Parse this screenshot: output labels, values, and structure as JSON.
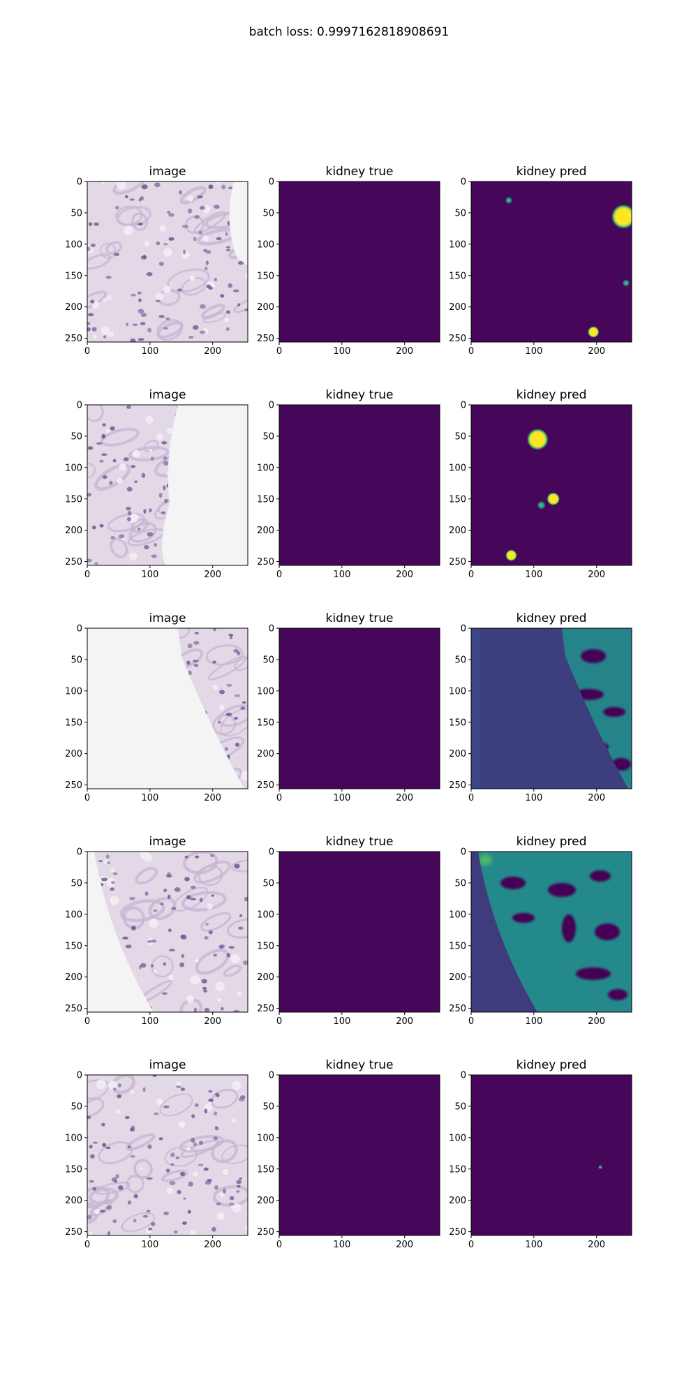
{
  "figure": {
    "suptitle": "batch loss: 0.9997162818908691"
  },
  "chart_data": [
    {
      "type": "heatmap",
      "row": 1,
      "col": 1,
      "title": "image",
      "content": "kidney tissue (H&E) tile, full tissue",
      "xticks": [
        0,
        100,
        200
      ],
      "yticks": [
        0,
        50,
        100,
        150,
        200,
        250
      ],
      "xlim": [
        0,
        256
      ],
      "ylim": [
        256,
        0
      ]
    },
    {
      "type": "heatmap",
      "row": 1,
      "col": 2,
      "title": "kidney true",
      "content": "empty mask",
      "xticks": [
        0,
        100,
        200
      ],
      "yticks": [
        0,
        50,
        100,
        150,
        200,
        250
      ],
      "xlim": [
        0,
        256
      ],
      "ylim": [
        256,
        0
      ]
    },
    {
      "type": "heatmap",
      "row": 1,
      "col": 3,
      "title": "kidney pred",
      "content": "sparse yellow blobs",
      "xticks": [
        0,
        100,
        200
      ],
      "yticks": [
        0,
        50,
        100,
        150,
        200,
        250
      ],
      "xlim": [
        0,
        256
      ],
      "ylim": [
        256,
        0
      ],
      "blobs": [
        {
          "x": 60,
          "y": 30,
          "r": 5,
          "level": 0.5
        },
        {
          "x": 243,
          "y": 56,
          "r": 17,
          "level": 1
        },
        {
          "x": 247,
          "y": 162,
          "r": 5,
          "level": 0.6
        },
        {
          "x": 195,
          "y": 240,
          "r": 8,
          "level": 1
        }
      ]
    },
    {
      "type": "heatmap",
      "row": 2,
      "col": 1,
      "title": "image",
      "content": "tissue on left, blank background right",
      "xticks": [
        0,
        100,
        200
      ],
      "yticks": [
        0,
        50,
        100,
        150,
        200,
        250
      ],
      "xlim": [
        0,
        256
      ],
      "ylim": [
        256,
        0
      ]
    },
    {
      "type": "heatmap",
      "row": 2,
      "col": 2,
      "title": "kidney true",
      "content": "empty mask",
      "xticks": [
        0,
        100,
        200
      ],
      "yticks": [
        0,
        50,
        100,
        150,
        200,
        250
      ],
      "xlim": [
        0,
        256
      ],
      "ylim": [
        256,
        0
      ]
    },
    {
      "type": "heatmap",
      "row": 2,
      "col": 3,
      "title": "kidney pred",
      "content": "sparse yellow blobs",
      "xticks": [
        0,
        100,
        200
      ],
      "yticks": [
        0,
        50,
        100,
        150,
        200,
        250
      ],
      "xlim": [
        0,
        256
      ],
      "ylim": [
        256,
        0
      ],
      "blobs": [
        {
          "x": 106,
          "y": 55,
          "r": 15,
          "level": 1
        },
        {
          "x": 131,
          "y": 150,
          "r": 9,
          "level": 1
        },
        {
          "x": 112,
          "y": 160,
          "r": 6,
          "level": 0.5
        },
        {
          "x": 64,
          "y": 240,
          "r": 8,
          "level": 1
        }
      ]
    },
    {
      "type": "heatmap",
      "row": 3,
      "col": 1,
      "title": "image",
      "content": "blank left, tissue right",
      "xticks": [
        0,
        100,
        200
      ],
      "yticks": [
        0,
        50,
        100,
        150,
        200,
        250
      ],
      "xlim": [
        0,
        256
      ],
      "ylim": [
        256,
        0
      ]
    },
    {
      "type": "heatmap",
      "row": 3,
      "col": 2,
      "title": "kidney true",
      "content": "empty mask",
      "xticks": [
        0,
        100,
        200
      ],
      "yticks": [
        0,
        50,
        100,
        150,
        200,
        250
      ],
      "xlim": [
        0,
        256
      ],
      "ylim": [
        256,
        0
      ]
    },
    {
      "type": "heatmap",
      "row": 3,
      "col": 3,
      "title": "kidney pred",
      "content": "low-level diffuse prediction over tissue",
      "xticks": [
        0,
        100,
        200
      ],
      "yticks": [
        0,
        50,
        100,
        150,
        200,
        250
      ],
      "xlim": [
        0,
        256
      ],
      "ylim": [
        256,
        0
      ]
    },
    {
      "type": "heatmap",
      "row": 4,
      "col": 1,
      "title": "image",
      "content": "blank left edge, tissue right",
      "xticks": [
        0,
        100,
        200
      ],
      "yticks": [
        0,
        50,
        100,
        150,
        200,
        250
      ],
      "xlim": [
        0,
        256
      ],
      "ylim": [
        256,
        0
      ]
    },
    {
      "type": "heatmap",
      "row": 4,
      "col": 2,
      "title": "kidney true",
      "content": "empty mask",
      "xticks": [
        0,
        100,
        200
      ],
      "yticks": [
        0,
        50,
        100,
        150,
        200,
        250
      ],
      "xlim": [
        0,
        256
      ],
      "ylim": [
        256,
        0
      ]
    },
    {
      "type": "heatmap",
      "row": 4,
      "col": 3,
      "title": "kidney pred",
      "content": "low-level diffuse prediction over tissue",
      "xticks": [
        0,
        100,
        200
      ],
      "yticks": [
        0,
        50,
        100,
        150,
        200,
        250
      ],
      "xlim": [
        0,
        256
      ],
      "ylim": [
        256,
        0
      ]
    },
    {
      "type": "heatmap",
      "row": 5,
      "col": 1,
      "title": "image",
      "content": "kidney tissue (H&E) tile, full tissue",
      "xticks": [
        0,
        100,
        200
      ],
      "yticks": [
        0,
        50,
        100,
        150,
        200,
        250
      ],
      "xlim": [
        0,
        256
      ],
      "ylim": [
        256,
        0
      ]
    },
    {
      "type": "heatmap",
      "row": 5,
      "col": 2,
      "title": "kidney true",
      "content": "empty mask",
      "xticks": [
        0,
        100,
        200
      ],
      "yticks": [
        0,
        50,
        100,
        150,
        200,
        250
      ],
      "xlim": [
        0,
        256
      ],
      "ylim": [
        256,
        0
      ]
    },
    {
      "type": "heatmap",
      "row": 5,
      "col": 3,
      "title": "kidney pred",
      "content": "single tiny spot",
      "xticks": [
        0,
        100,
        200
      ],
      "yticks": [
        0,
        50,
        100,
        150,
        200,
        250
      ],
      "xlim": [
        0,
        256
      ],
      "ylim": [
        256,
        0
      ],
      "blobs": [
        {
          "x": 206,
          "y": 147,
          "r": 3,
          "level": 0.6
        }
      ]
    }
  ],
  "colors": {
    "viridis_low": "#440154",
    "viridis_bg": "#46075a",
    "viridis_mid_low": "#3b528b",
    "viridis_mid": "#21918c",
    "viridis_mid_high": "#5ec962",
    "viridis_high": "#fde725",
    "tissue_pale": "#e2d8e6",
    "tissue_mid": "#c7b4d3",
    "tissue_nuclei": "#6e5a96",
    "blank_bg": "#f4f4f4"
  }
}
